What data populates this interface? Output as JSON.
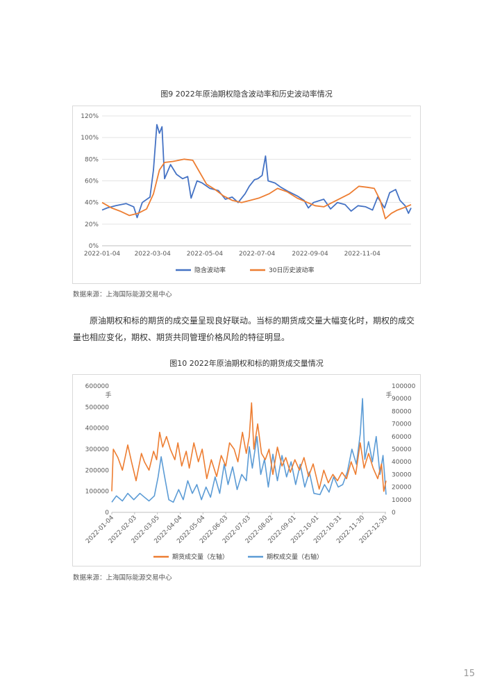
{
  "figure9": {
    "title": "图9 2022年原油期权隐含波动率和历史波动率情况",
    "source": "数据来源：上海国际能源交易中心"
  },
  "paragraph": "原油期权和标的期货的成交量呈现良好联动。当标的期货成交量大幅变化时，期权的成交量也相应变化，期权、期货共同管理价格风险的特征明显。",
  "figure10": {
    "title": "图10 2022年原油期权和标的期货成交量情况",
    "source": "数据来源：上海国际能源交易中心"
  },
  "page_number": "15",
  "chart_data": [
    {
      "type": "line",
      "x_tick_labels": [
        "2022-01-04",
        "2022-03-04",
        "2022-05-04",
        "2022-07-04",
        "2022-09-04",
        "2022-11-04"
      ],
      "y_tick_labels": [
        "0%",
        "20%",
        "40%",
        "60%",
        "80%",
        "100%",
        "120%"
      ],
      "ylim": [
        0,
        120
      ],
      "y_unit": "%",
      "grid": true,
      "legend_position": "bottom",
      "series": [
        {
          "name": "隐含波动率",
          "color": "#4472C4",
          "points": [
            [
              "2022-01-04",
              33
            ],
            [
              "2022-01-10",
              35
            ],
            [
              "2022-01-20",
              37
            ],
            [
              "2022-02-01",
              39
            ],
            [
              "2022-02-10",
              36
            ],
            [
              "2022-02-14",
              26
            ],
            [
              "2022-02-20",
              40
            ],
            [
              "2022-03-01",
              45
            ],
            [
              "2022-03-05",
              70
            ],
            [
              "2022-03-09",
              112
            ],
            [
              "2022-03-12",
              104
            ],
            [
              "2022-03-15",
              110
            ],
            [
              "2022-03-18",
              62
            ],
            [
              "2022-03-25",
              75
            ],
            [
              "2022-04-01",
              66
            ],
            [
              "2022-04-08",
              62
            ],
            [
              "2022-04-14",
              64
            ],
            [
              "2022-04-18",
              44
            ],
            [
              "2022-04-25",
              60
            ],
            [
              "2022-05-01",
              58
            ],
            [
              "2022-05-10",
              53
            ],
            [
              "2022-05-20",
              51
            ],
            [
              "2022-05-28",
              43
            ],
            [
              "2022-06-05",
              45
            ],
            [
              "2022-06-12",
              40
            ],
            [
              "2022-06-20",
              48
            ],
            [
              "2022-06-25",
              55
            ],
            [
              "2022-07-01",
              61
            ],
            [
              "2022-07-05",
              62
            ],
            [
              "2022-07-10",
              65
            ],
            [
              "2022-07-14",
              83
            ],
            [
              "2022-07-17",
              60
            ],
            [
              "2022-07-25",
              58
            ],
            [
              "2022-08-01",
              54
            ],
            [
              "2022-08-10",
              50
            ],
            [
              "2022-08-20",
              46
            ],
            [
              "2022-08-28",
              42
            ],
            [
              "2022-09-02",
              35
            ],
            [
              "2022-09-08",
              40
            ],
            [
              "2022-09-20",
              43
            ],
            [
              "2022-09-28",
              34
            ],
            [
              "2022-10-06",
              40
            ],
            [
              "2022-10-15",
              38
            ],
            [
              "2022-10-22",
              32
            ],
            [
              "2022-10-30",
              37
            ],
            [
              "2022-11-08",
              36
            ],
            [
              "2022-11-16",
              33
            ],
            [
              "2022-11-22",
              45
            ],
            [
              "2022-11-30",
              35
            ],
            [
              "2022-12-06",
              49
            ],
            [
              "2022-12-13",
              52
            ],
            [
              "2022-12-18",
              42
            ],
            [
              "2022-12-24",
              37
            ],
            [
              "2022-12-28",
              30
            ],
            [
              "2022-12-31",
              35
            ]
          ]
        },
        {
          "name": "30日历史波动率",
          "color": "#ED7D31",
          "points": [
            [
              "2022-01-04",
              40
            ],
            [
              "2022-01-15",
              35
            ],
            [
              "2022-01-25",
              32
            ],
            [
              "2022-02-05",
              28
            ],
            [
              "2022-02-15",
              30
            ],
            [
              "2022-02-25",
              34
            ],
            [
              "2022-03-05",
              48
            ],
            [
              "2022-03-12",
              70
            ],
            [
              "2022-03-18",
              77
            ],
            [
              "2022-03-28",
              78
            ],
            [
              "2022-04-10",
              80
            ],
            [
              "2022-04-20",
              79
            ],
            [
              "2022-04-28",
              68
            ],
            [
              "2022-05-06",
              57
            ],
            [
              "2022-05-16",
              52
            ],
            [
              "2022-05-26",
              46
            ],
            [
              "2022-06-05",
              42
            ],
            [
              "2022-06-16",
              40
            ],
            [
              "2022-06-26",
              42
            ],
            [
              "2022-07-06",
              44
            ],
            [
              "2022-07-18",
              48
            ],
            [
              "2022-07-28",
              53
            ],
            [
              "2022-08-08",
              50
            ],
            [
              "2022-08-20",
              44
            ],
            [
              "2022-09-01",
              40
            ],
            [
              "2022-09-10",
              37
            ],
            [
              "2022-09-20",
              36
            ],
            [
              "2022-09-30",
              40
            ],
            [
              "2022-10-10",
              44
            ],
            [
              "2022-10-20",
              48
            ],
            [
              "2022-10-31",
              55
            ],
            [
              "2022-11-10",
              54
            ],
            [
              "2022-11-18",
              53
            ],
            [
              "2022-11-25",
              42
            ],
            [
              "2022-12-01",
              25
            ],
            [
              "2022-12-08",
              30
            ],
            [
              "2022-12-15",
              33
            ],
            [
              "2022-12-22",
              35
            ],
            [
              "2022-12-31",
              38
            ]
          ]
        }
      ]
    },
    {
      "type": "line",
      "x_tick_labels": [
        "2022-01-04",
        "2022-02-03",
        "2022-03-05",
        "2022-04-04",
        "2022-05-04",
        "2022-06-03",
        "2022-07-03",
        "2022-08-02",
        "2022-09-01",
        "2022-10-01",
        "2022-10-31",
        "2022-11-30",
        "2022-12-30"
      ],
      "y_left_tick_labels": [
        "0",
        "100000",
        "200000",
        "300000",
        "400000",
        "500000",
        "600000"
      ],
      "y_right_tick_labels": [
        "0",
        "10000",
        "20000",
        "30000",
        "40000",
        "50000",
        "60000",
        "70000",
        "80000",
        "90000",
        "100000"
      ],
      "ylim_left": [
        0,
        600000
      ],
      "ylim_right": [
        0,
        100000
      ],
      "left_unit": "手",
      "right_unit": "手",
      "grid": false,
      "legend_position": "bottom",
      "series": [
        {
          "name": "期货成交量（左轴）",
          "color": "#ED7D31",
          "axis": "left",
          "points": [
            [
              "2022-01-04",
              100000
            ],
            [
              "2022-01-06",
              300000
            ],
            [
              "2022-01-12",
              260000
            ],
            [
              "2022-01-18",
              200000
            ],
            [
              "2022-01-25",
              320000
            ],
            [
              "2022-01-30",
              240000
            ],
            [
              "2022-02-05",
              150000
            ],
            [
              "2022-02-12",
              280000
            ],
            [
              "2022-02-16",
              240000
            ],
            [
              "2022-02-22",
              200000
            ],
            [
              "2022-02-28",
              290000
            ],
            [
              "2022-03-04",
              250000
            ],
            [
              "2022-03-08",
              380000
            ],
            [
              "2022-03-12",
              310000
            ],
            [
              "2022-03-17",
              360000
            ],
            [
              "2022-03-22",
              300000
            ],
            [
              "2022-03-28",
              250000
            ],
            [
              "2022-04-01",
              330000
            ],
            [
              "2022-04-06",
              220000
            ],
            [
              "2022-04-12",
              290000
            ],
            [
              "2022-04-16",
              210000
            ],
            [
              "2022-04-22",
              330000
            ],
            [
              "2022-04-28",
              240000
            ],
            [
              "2022-05-03",
              300000
            ],
            [
              "2022-05-09",
              160000
            ],
            [
              "2022-05-15",
              250000
            ],
            [
              "2022-05-22",
              170000
            ],
            [
              "2022-05-28",
              270000
            ],
            [
              "2022-06-03",
              220000
            ],
            [
              "2022-06-08",
              330000
            ],
            [
              "2022-06-14",
              300000
            ],
            [
              "2022-06-19",
              240000
            ],
            [
              "2022-06-25",
              380000
            ],
            [
              "2022-06-30",
              280000
            ],
            [
              "2022-07-04",
              360000
            ],
            [
              "2022-07-07",
              520000
            ],
            [
              "2022-07-10",
              300000
            ],
            [
              "2022-07-15",
              420000
            ],
            [
              "2022-07-20",
              280000
            ],
            [
              "2022-07-25",
              250000
            ],
            [
              "2022-07-30",
              300000
            ],
            [
              "2022-08-04",
              180000
            ],
            [
              "2022-08-10",
              310000
            ],
            [
              "2022-08-16",
              220000
            ],
            [
              "2022-08-21",
              260000
            ],
            [
              "2022-08-27",
              190000
            ],
            [
              "2022-09-02",
              250000
            ],
            [
              "2022-09-08",
              200000
            ],
            [
              "2022-09-14",
              260000
            ],
            [
              "2022-09-20",
              170000
            ],
            [
              "2022-09-26",
              230000
            ],
            [
              "2022-10-04",
              110000
            ],
            [
              "2022-10-10",
              200000
            ],
            [
              "2022-10-16",
              140000
            ],
            [
              "2022-10-22",
              180000
            ],
            [
              "2022-10-28",
              150000
            ],
            [
              "2022-11-03",
              190000
            ],
            [
              "2022-11-09",
              160000
            ],
            [
              "2022-11-15",
              240000
            ],
            [
              "2022-11-21",
              180000
            ],
            [
              "2022-11-27",
              330000
            ],
            [
              "2022-12-02",
              210000
            ],
            [
              "2022-12-08",
              280000
            ],
            [
              "2022-12-14",
              210000
            ],
            [
              "2022-12-20",
              160000
            ],
            [
              "2022-12-25",
              230000
            ],
            [
              "2022-12-28",
              100000
            ],
            [
              "2022-12-31",
              150000
            ]
          ]
        },
        {
          "name": "期权成交量（右轴）",
          "color": "#5B9BD5",
          "axis": "right",
          "points": [
            [
              "2022-01-04",
              8000
            ],
            [
              "2022-01-10",
              13000
            ],
            [
              "2022-01-18",
              9000
            ],
            [
              "2022-01-25",
              15000
            ],
            [
              "2022-02-02",
              10000
            ],
            [
              "2022-02-10",
              15000
            ],
            [
              "2022-02-16",
              12000
            ],
            [
              "2022-02-22",
              9000
            ],
            [
              "2022-03-01",
              13000
            ],
            [
              "2022-03-06",
              28000
            ],
            [
              "2022-03-10",
              44000
            ],
            [
              "2022-03-14",
              30000
            ],
            [
              "2022-03-20",
              10000
            ],
            [
              "2022-03-26",
              8000
            ],
            [
              "2022-04-02",
              18000
            ],
            [
              "2022-04-08",
              10000
            ],
            [
              "2022-04-14",
              25000
            ],
            [
              "2022-04-20",
              15000
            ],
            [
              "2022-04-26",
              22000
            ],
            [
              "2022-05-02",
              10000
            ],
            [
              "2022-05-08",
              20000
            ],
            [
              "2022-05-14",
              12000
            ],
            [
              "2022-05-20",
              28000
            ],
            [
              "2022-05-26",
              15000
            ],
            [
              "2022-06-01",
              38000
            ],
            [
              "2022-06-06",
              22000
            ],
            [
              "2022-06-12",
              36000
            ],
            [
              "2022-06-18",
              18000
            ],
            [
              "2022-06-24",
              30000
            ],
            [
              "2022-06-30",
              25000
            ],
            [
              "2022-07-04",
              52000
            ],
            [
              "2022-07-08",
              35000
            ],
            [
              "2022-07-14",
              60000
            ],
            [
              "2022-07-19",
              30000
            ],
            [
              "2022-07-24",
              42000
            ],
            [
              "2022-07-29",
              20000
            ],
            [
              "2022-08-04",
              46000
            ],
            [
              "2022-08-10",
              25000
            ],
            [
              "2022-08-16",
              45000
            ],
            [
              "2022-08-22",
              28000
            ],
            [
              "2022-08-28",
              40000
            ],
            [
              "2022-09-03",
              22000
            ],
            [
              "2022-09-09",
              38000
            ],
            [
              "2022-09-15",
              20000
            ],
            [
              "2022-09-21",
              32000
            ],
            [
              "2022-09-27",
              15000
            ],
            [
              "2022-10-05",
              14000
            ],
            [
              "2022-10-11",
              22000
            ],
            [
              "2022-10-17",
              16000
            ],
            [
              "2022-10-23",
              28000
            ],
            [
              "2022-10-29",
              20000
            ],
            [
              "2022-11-04",
              22000
            ],
            [
              "2022-11-10",
              32000
            ],
            [
              "2022-11-16",
              50000
            ],
            [
              "2022-11-22",
              38000
            ],
            [
              "2022-11-27",
              62000
            ],
            [
              "2022-11-30",
              90000
            ],
            [
              "2022-12-03",
              42000
            ],
            [
              "2022-12-08",
              56000
            ],
            [
              "2022-12-13",
              40000
            ],
            [
              "2022-12-18",
              60000
            ],
            [
              "2022-12-23",
              30000
            ],
            [
              "2022-12-27",
              45000
            ],
            [
              "2022-12-31",
              14000
            ]
          ]
        }
      ]
    }
  ]
}
